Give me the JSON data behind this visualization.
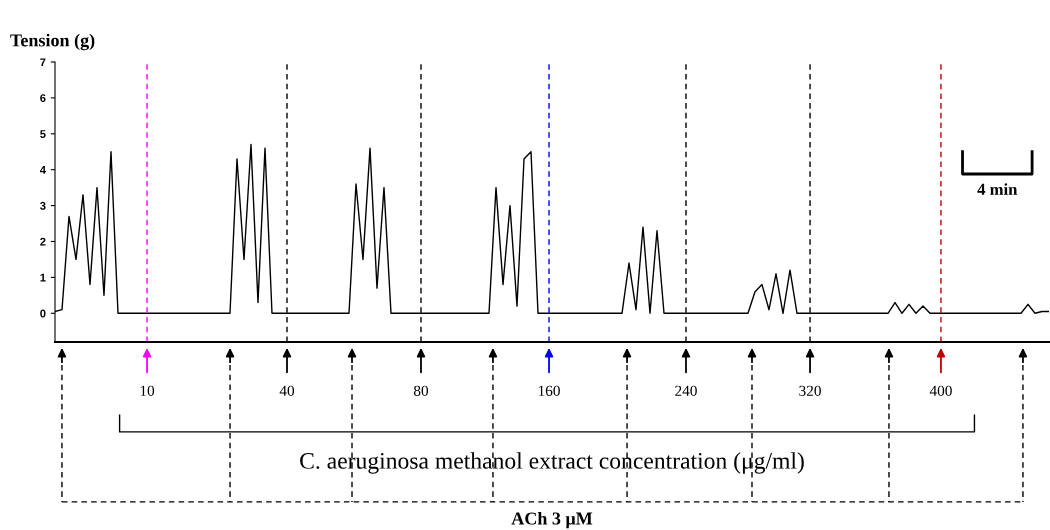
{
  "chart_data": {
    "type": "line",
    "ylabel": "Tension (g)",
    "tick_labels": "y",
    "grid": false,
    "legend": false,
    "ylim": [
      -0.8,
      7
    ],
    "yticks": [
      0,
      1,
      2,
      3,
      4,
      5,
      6,
      7
    ],
    "categories": [
      null,
      null,
      null,
      null,
      null,
      null,
      null,
      null,
      null,
      null,
      null,
      null,
      null,
      null,
      null,
      null,
      null,
      null,
      null,
      null,
      null,
      null,
      null,
      null,
      null,
      null,
      null,
      null,
      null,
      null,
      null,
      null,
      null,
      null,
      null,
      null,
      null,
      null,
      null,
      null,
      null,
      null,
      null,
      null,
      null,
      null,
      null,
      null,
      null,
      null,
      null,
      null,
      null,
      null,
      null,
      null,
      null,
      null,
      null,
      null,
      null,
      null,
      null,
      null,
      null,
      null,
      null,
      null,
      null,
      null,
      null,
      null,
      null,
      null,
      null,
      null,
      null,
      null,
      null,
      null,
      null,
      null,
      null,
      null,
      null,
      null,
      null,
      null,
      null,
      null,
      null,
      null,
      null,
      null,
      null,
      null,
      null,
      null,
      null,
      null,
      null,
      null,
      null,
      null,
      null,
      null,
      null,
      null,
      null,
      null,
      null,
      null,
      null,
      null,
      null,
      null,
      null,
      null,
      null,
      null,
      null,
      null,
      null,
      null,
      null,
      null,
      null,
      null,
      null,
      null,
      null,
      null,
      null,
      null,
      null,
      null,
      null,
      null,
      null,
      null,
      null,
      null,
      null
    ],
    "series": [
      {
        "color": "#000000",
        "values": [
          0.05,
          0.1,
          2.7,
          1.5,
          3.3,
          0.8,
          3.5,
          0.5,
          4.5,
          0.0,
          0.0,
          0,
          0,
          0,
          0,
          0,
          0,
          0,
          0,
          0,
          0,
          0,
          0,
          0,
          0,
          0.0,
          4.3,
          1.5,
          4.7,
          0.3,
          4.6,
          0.0,
          0,
          0,
          0,
          0,
          0,
          0,
          0,
          0,
          0,
          0,
          0,
          3.6,
          1.5,
          4.6,
          0.7,
          3.5,
          0.0,
          0,
          0,
          0,
          0,
          0,
          0,
          0,
          0,
          0,
          0,
          0,
          0,
          0,
          0,
          3.5,
          0.8,
          3.0,
          0.2,
          4.3,
          4.5,
          0.0,
          0,
          0,
          0,
          0,
          0,
          0,
          0,
          0,
          0,
          0,
          0,
          0,
          1.4,
          0.1,
          2.4,
          0.0,
          2.3,
          0.0,
          0,
          0,
          0,
          0,
          0,
          0,
          0,
          0,
          0,
          0,
          0,
          0,
          0.6,
          0.8,
          0.1,
          1.1,
          0.0,
          1.2,
          0.0,
          0.0,
          0,
          0,
          0,
          0,
          0,
          0,
          0,
          0,
          0,
          0,
          0,
          0.0,
          0.3,
          0.0,
          0.25,
          0.0,
          0.2,
          0.0,
          0,
          0,
          0,
          0,
          0,
          0,
          0,
          0,
          0,
          0,
          0,
          0,
          0.0,
          0.25,
          0.0,
          0.05,
          0.05
        ]
      }
    ],
    "annotations": [
      "4 min",
      "C. aeruginosa methanol extract concentration (μg/ml)",
      "ACh 3 μM",
      "10",
      "40",
      "80",
      "160",
      "240",
      "320",
      "400"
    ]
  }
}
